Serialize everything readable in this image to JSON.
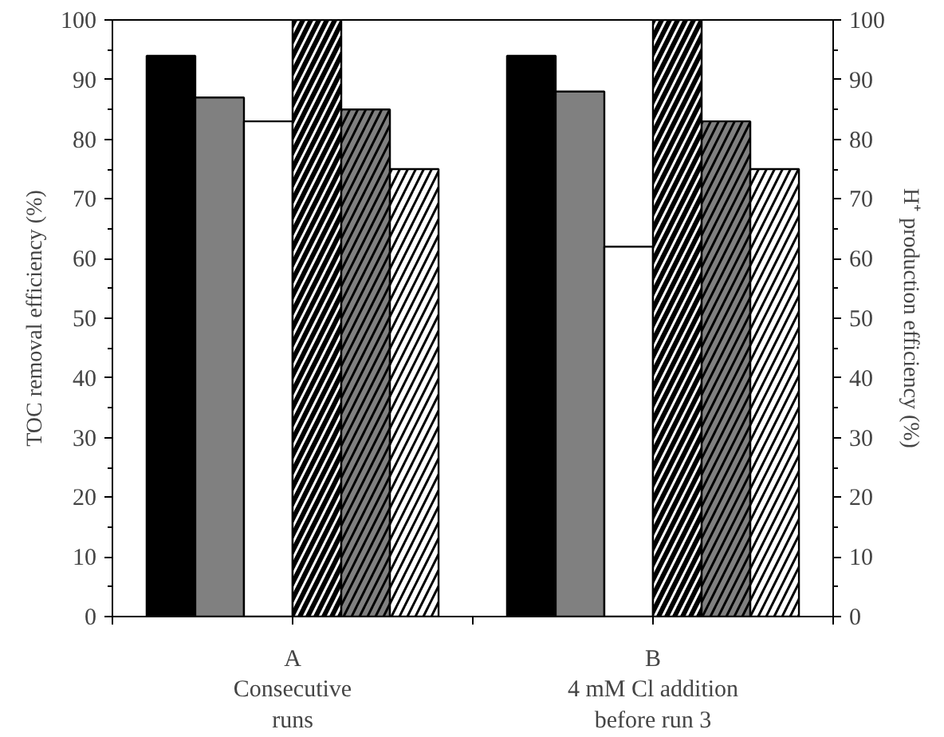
{
  "chart_data": {
    "type": "bar",
    "categories": [
      "A\nConsecutive\nruns",
      "B\n4 mM Cl addition\nbefore run 3"
    ],
    "ylabel": "TOC removal efficiency (%)",
    "y2label": "H⁺ production efficiency (%)",
    "ylim": [
      0,
      100
    ],
    "yticks": [
      0,
      10,
      20,
      30,
      40,
      50,
      60,
      70,
      80,
      90,
      100
    ],
    "y2lim": [
      0,
      100
    ],
    "y2ticks": [
      0,
      10,
      20,
      30,
      40,
      50,
      60,
      70,
      80,
      90,
      100
    ],
    "grid": false,
    "series": [
      {
        "color": "#000000",
        "values": [
          94,
          94
        ]
      },
      {
        "color": "#808080",
        "values": [
          87,
          88
        ]
      },
      {
        "color": "#ffffff",
        "values": [
          83,
          62
        ]
      },
      {
        "color": "#000000",
        "values": [
          100,
          100
        ],
        "axis": "y2"
      },
      {
        "color": "#808080",
        "values": [
          85,
          83
        ],
        "axis": "y2"
      },
      {
        "color": "#ffffff",
        "values": [
          75,
          75
        ],
        "axis": "y2"
      }
    ]
  }
}
